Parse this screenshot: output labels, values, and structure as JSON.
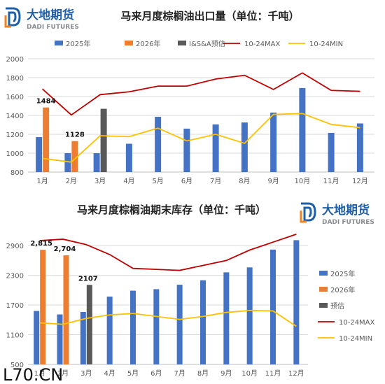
{
  "brand": {
    "name_cn": "大地期货",
    "name_en": "DADI FUTURES",
    "color_blue": "#1f5fa8",
    "color_orange": "#f58220",
    "color_gray": "#8a8d91"
  },
  "watermark": "L70.CN",
  "colors": {
    "s2025": "#4472c4",
    "s2026": "#ed7d31",
    "sForecast": "#595959",
    "sMax": "#c00000",
    "sMin": "#ffc000",
    "grid": "#d9d9d9",
    "axis_text": "#595959"
  },
  "chart_data": [
    {
      "type": "bar",
      "title": "马来月度棕榈油出口量（单位：千吨）",
      "categories": [
        "1月",
        "2月",
        "3月",
        "4月",
        "5月",
        "6月",
        "7月",
        "8月",
        "9月",
        "10月",
        "11月",
        "12月"
      ],
      "ylim": [
        800,
        2000
      ],
      "yticks": [
        800,
        1000,
        1200,
        1400,
        1600,
        1800,
        2000
      ],
      "grid": true,
      "legend_position": "top",
      "series": [
        {
          "name": "2025年",
          "kind": "bar",
          "values": [
            1170,
            1000,
            1000,
            1100,
            1385,
            1260,
            1305,
            1325,
            1430,
            1690,
            1215,
            1315
          ]
        },
        {
          "name": "2026年",
          "kind": "bar",
          "values": [
            1484,
            1128,
            null,
            null,
            null,
            null,
            null,
            null,
            null,
            null,
            null,
            null
          ]
        },
        {
          "name": "I&S&A预估",
          "kind": "bar",
          "values": [
            null,
            null,
            1470,
            null,
            null,
            null,
            null,
            null,
            null,
            null,
            null,
            null
          ]
        },
        {
          "name": "10-24MAX",
          "kind": "line",
          "values": [
            1680,
            1405,
            1620,
            1650,
            1710,
            1710,
            1785,
            1825,
            1675,
            1850,
            1665,
            1655
          ]
        },
        {
          "name": "10-24MIN",
          "kind": "line",
          "values": [
            945,
            905,
            1185,
            1175,
            1265,
            1130,
            1200,
            1105,
            1410,
            1420,
            1305,
            1270
          ]
        }
      ],
      "data_labels": [
        {
          "category": "1月",
          "value": "1484"
        },
        {
          "category": "2月",
          "value": "1128"
        }
      ]
    },
    {
      "type": "bar",
      "title": "马来月度棕榈油期末库存（单位：千吨）",
      "categories": [
        "1月",
        "2月",
        "3月",
        "4月",
        "5月",
        "6月",
        "7月",
        "8月",
        "9月",
        "10月",
        "11月",
        "12月"
      ],
      "ylim": [
        500,
        3100
      ],
      "yticks": [
        500,
        1100,
        1700,
        2300,
        2900
      ],
      "grid": true,
      "legend_position": "right",
      "series": [
        {
          "name": "2025年",
          "kind": "bar",
          "values": [
            1580,
            1510,
            1560,
            1870,
            1990,
            2020,
            2110,
            2200,
            2360,
            2460,
            2820,
            3010
          ]
        },
        {
          "name": "2026年",
          "kind": "bar",
          "values": [
            2815,
            2704,
            null,
            null,
            null,
            null,
            null,
            null,
            null,
            null,
            null,
            null
          ]
        },
        {
          "name": "预估",
          "kind": "bar",
          "values": [
            null,
            null,
            2107,
            null,
            null,
            null,
            null,
            null,
            null,
            null,
            null,
            null
          ]
        },
        {
          "name": "10-24MAX",
          "kind": "line",
          "values": [
            3000,
            3030,
            2920,
            2720,
            2440,
            2420,
            2400,
            2500,
            2600,
            2810,
            2970,
            3130
          ]
        },
        {
          "name": "10-24MIN",
          "kind": "line",
          "values": [
            1340,
            1310,
            1430,
            1500,
            1530,
            1470,
            1410,
            1470,
            1550,
            1590,
            1580,
            1270
          ]
        }
      ],
      "data_labels": [
        {
          "category": "1月",
          "value": "2,815"
        },
        {
          "category": "2月",
          "value": "2,704"
        },
        {
          "category": "3月",
          "value": "2107"
        }
      ]
    }
  ]
}
